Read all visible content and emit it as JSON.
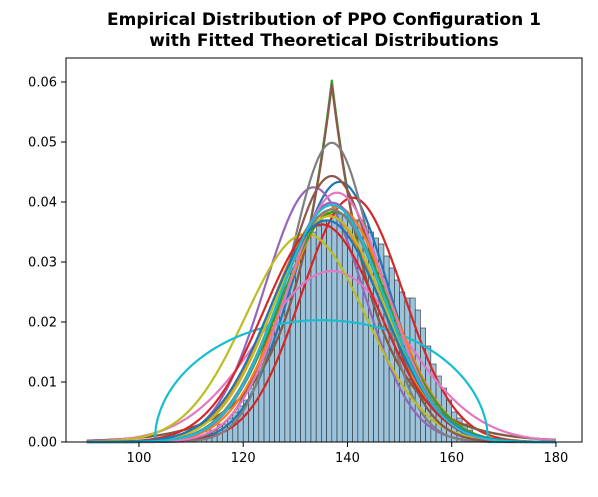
{
  "chart_data": {
    "type": "histogram",
    "title_lines": [
      "Empirical Distribution of PPO Configuration 1",
      "with Fitted Theoretical Distributions"
    ],
    "xlabel": "",
    "ylabel": "",
    "xlim": [
      86,
      185
    ],
    "ylim": [
      0,
      0.064
    ],
    "xticks": [
      100,
      120,
      140,
      160,
      180
    ],
    "yticks": [
      0.0,
      0.01,
      0.02,
      0.03,
      0.04,
      0.05,
      0.06
    ],
    "ytick_labels": [
      "0.00",
      "0.01",
      "0.02",
      "0.03",
      "0.04",
      "0.05",
      "0.06"
    ],
    "grid": false,
    "legend": "none",
    "histogram": {
      "color": "#9cc3dc",
      "edge_color": "#2b2b2b",
      "bin_start": 112,
      "bin_width": 1,
      "densities": [
        0.001,
        0.002,
        0.002,
        0.003,
        0.003,
        0.004,
        0.005,
        0.006,
        0.007,
        0.009,
        0.011,
        0.013,
        0.016,
        0.018,
        0.021,
        0.024,
        0.026,
        0.029,
        0.031,
        0.033,
        0.034,
        0.035,
        0.036,
        0.037,
        0.037,
        0.038,
        0.038,
        0.038,
        0.038,
        0.037,
        0.037,
        0.036,
        0.035,
        0.034,
        0.033,
        0.031,
        0.029,
        0.027,
        0.025,
        0.024,
        0.024,
        0.022,
        0.019,
        0.016,
        0.013,
        0.011,
        0.009,
        0.007,
        0.005,
        0.004,
        0.003,
        0.002,
        0.001
      ]
    },
    "fitted_distributions": [
      {
        "color": "#1f77b4",
        "kind": "normal",
        "mu": 138.5,
        "sigma": 9.2,
        "scale": 1.0
      },
      {
        "color": "#ff7f0e",
        "kind": "normal",
        "mu": 136,
        "sigma": 10.5,
        "scale": 1.0
      },
      {
        "color": "#2ca02c",
        "kind": "laplace",
        "mu": 137,
        "b": 8.3,
        "scale": 1.0
      },
      {
        "color": "#d62728",
        "kind": "normal",
        "mu": 141,
        "sigma": 9.8,
        "scale": 1.0
      },
      {
        "color": "#9467bd",
        "kind": "normal",
        "mu": 133.5,
        "sigma": 9.4,
        "scale": 1.0
      },
      {
        "color": "#8c564b",
        "kind": "laplace",
        "mu": 137,
        "b": 8.4,
        "scale": 1.0
      },
      {
        "color": "#e377c2",
        "kind": "normal",
        "mu": 137,
        "sigma": 14,
        "scale": 1.0
      },
      {
        "color": "#7f7f7f",
        "kind": "normal",
        "mu": 137,
        "sigma": 8.0,
        "scale": 1.0
      },
      {
        "color": "#bcbd22",
        "kind": "normal",
        "mu": 132,
        "sigma": 11.5,
        "scale": 1.0
      },
      {
        "color": "#17becf",
        "kind": "semicircle",
        "mu": 135,
        "R": 32,
        "peak": 0.0203
      },
      {
        "color": "#8c564b",
        "kind": "normal",
        "mu": 137,
        "sigma": 9.0,
        "scale": 1.0
      },
      {
        "color": "#ff7f0e",
        "kind": "normal",
        "mu": 138,
        "sigma": 10.2,
        "scale": 1.0
      },
      {
        "color": "#2ca02c",
        "kind": "normal",
        "mu": 137.5,
        "sigma": 10.4,
        "scale": 1.0
      },
      {
        "color": "#9467bd",
        "kind": "normal",
        "mu": 137,
        "sigma": 10.0,
        "scale": 1.0
      },
      {
        "color": "#bcbd22",
        "kind": "normal",
        "mu": 136.5,
        "sigma": 10.6,
        "scale": 1.0
      },
      {
        "color": "#e377c2",
        "kind": "normal",
        "mu": 138,
        "sigma": 9.6,
        "scale": 1.0
      },
      {
        "color": "#d62728",
        "kind": "normal",
        "mu": 135,
        "sigma": 11.0,
        "scale": 1.0
      },
      {
        "color": "#7f7f7f",
        "kind": "normal",
        "mu": 137,
        "sigma": 10.3,
        "scale": 1.0
      },
      {
        "color": "#1f77b4",
        "kind": "normal",
        "mu": 136,
        "sigma": 10.8,
        "scale": 1.0
      },
      {
        "color": "#17becf",
        "kind": "normal",
        "mu": 137,
        "sigma": 10.1,
        "scale": 1.0
      }
    ]
  }
}
